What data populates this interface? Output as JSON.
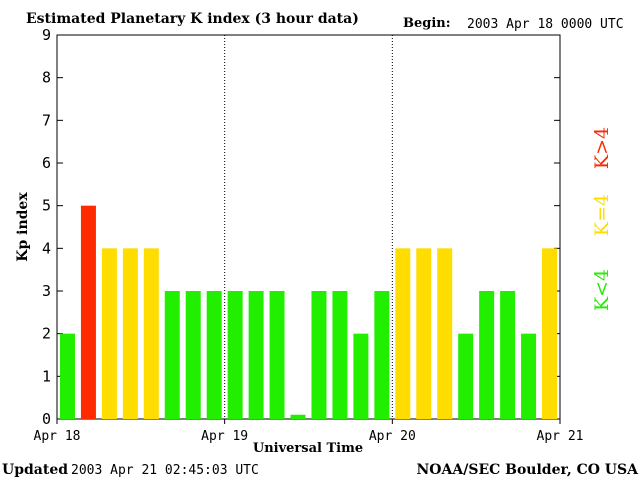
{
  "chart_data": {
    "type": "bar",
    "title": "Estimated Planetary K index (3 hour data)",
    "begin_label": "Begin:",
    "begin_value": "2003 Apr 18 0000 UTC",
    "ylabel": "Kp index",
    "xlabel": "Universal Time",
    "ylim": [
      0,
      9
    ],
    "yticks": [
      "0",
      "1",
      "2",
      "3",
      "4",
      "5",
      "6",
      "7",
      "8",
      "9"
    ],
    "day_labels": [
      "Apr 18",
      "Apr 19",
      "Apr 20",
      "Apr 21"
    ],
    "bars_per_day": 8,
    "values": [
      2,
      5,
      4,
      4,
      4,
      3,
      3,
      3,
      3,
      3,
      3,
      0.1,
      3,
      3,
      2,
      3,
      4,
      4,
      4,
      2,
      3,
      3,
      2,
      4
    ],
    "colors": {
      "low": "#22ee00",
      "mid": "#ffdd00",
      "high": "#ff2a00"
    },
    "legend": [
      {
        "label": "K<4",
        "color": "#22ee00"
      },
      {
        "label": "K=4",
        "color": "#ffdd00"
      },
      {
        "label": "K>4",
        "color": "#ff2a00"
      }
    ]
  },
  "footer": {
    "updated_label": "Updated",
    "updated_value": "2003 Apr 21 02:45:03 UTC",
    "source": "NOAA/SEC Boulder, CO USA"
  }
}
